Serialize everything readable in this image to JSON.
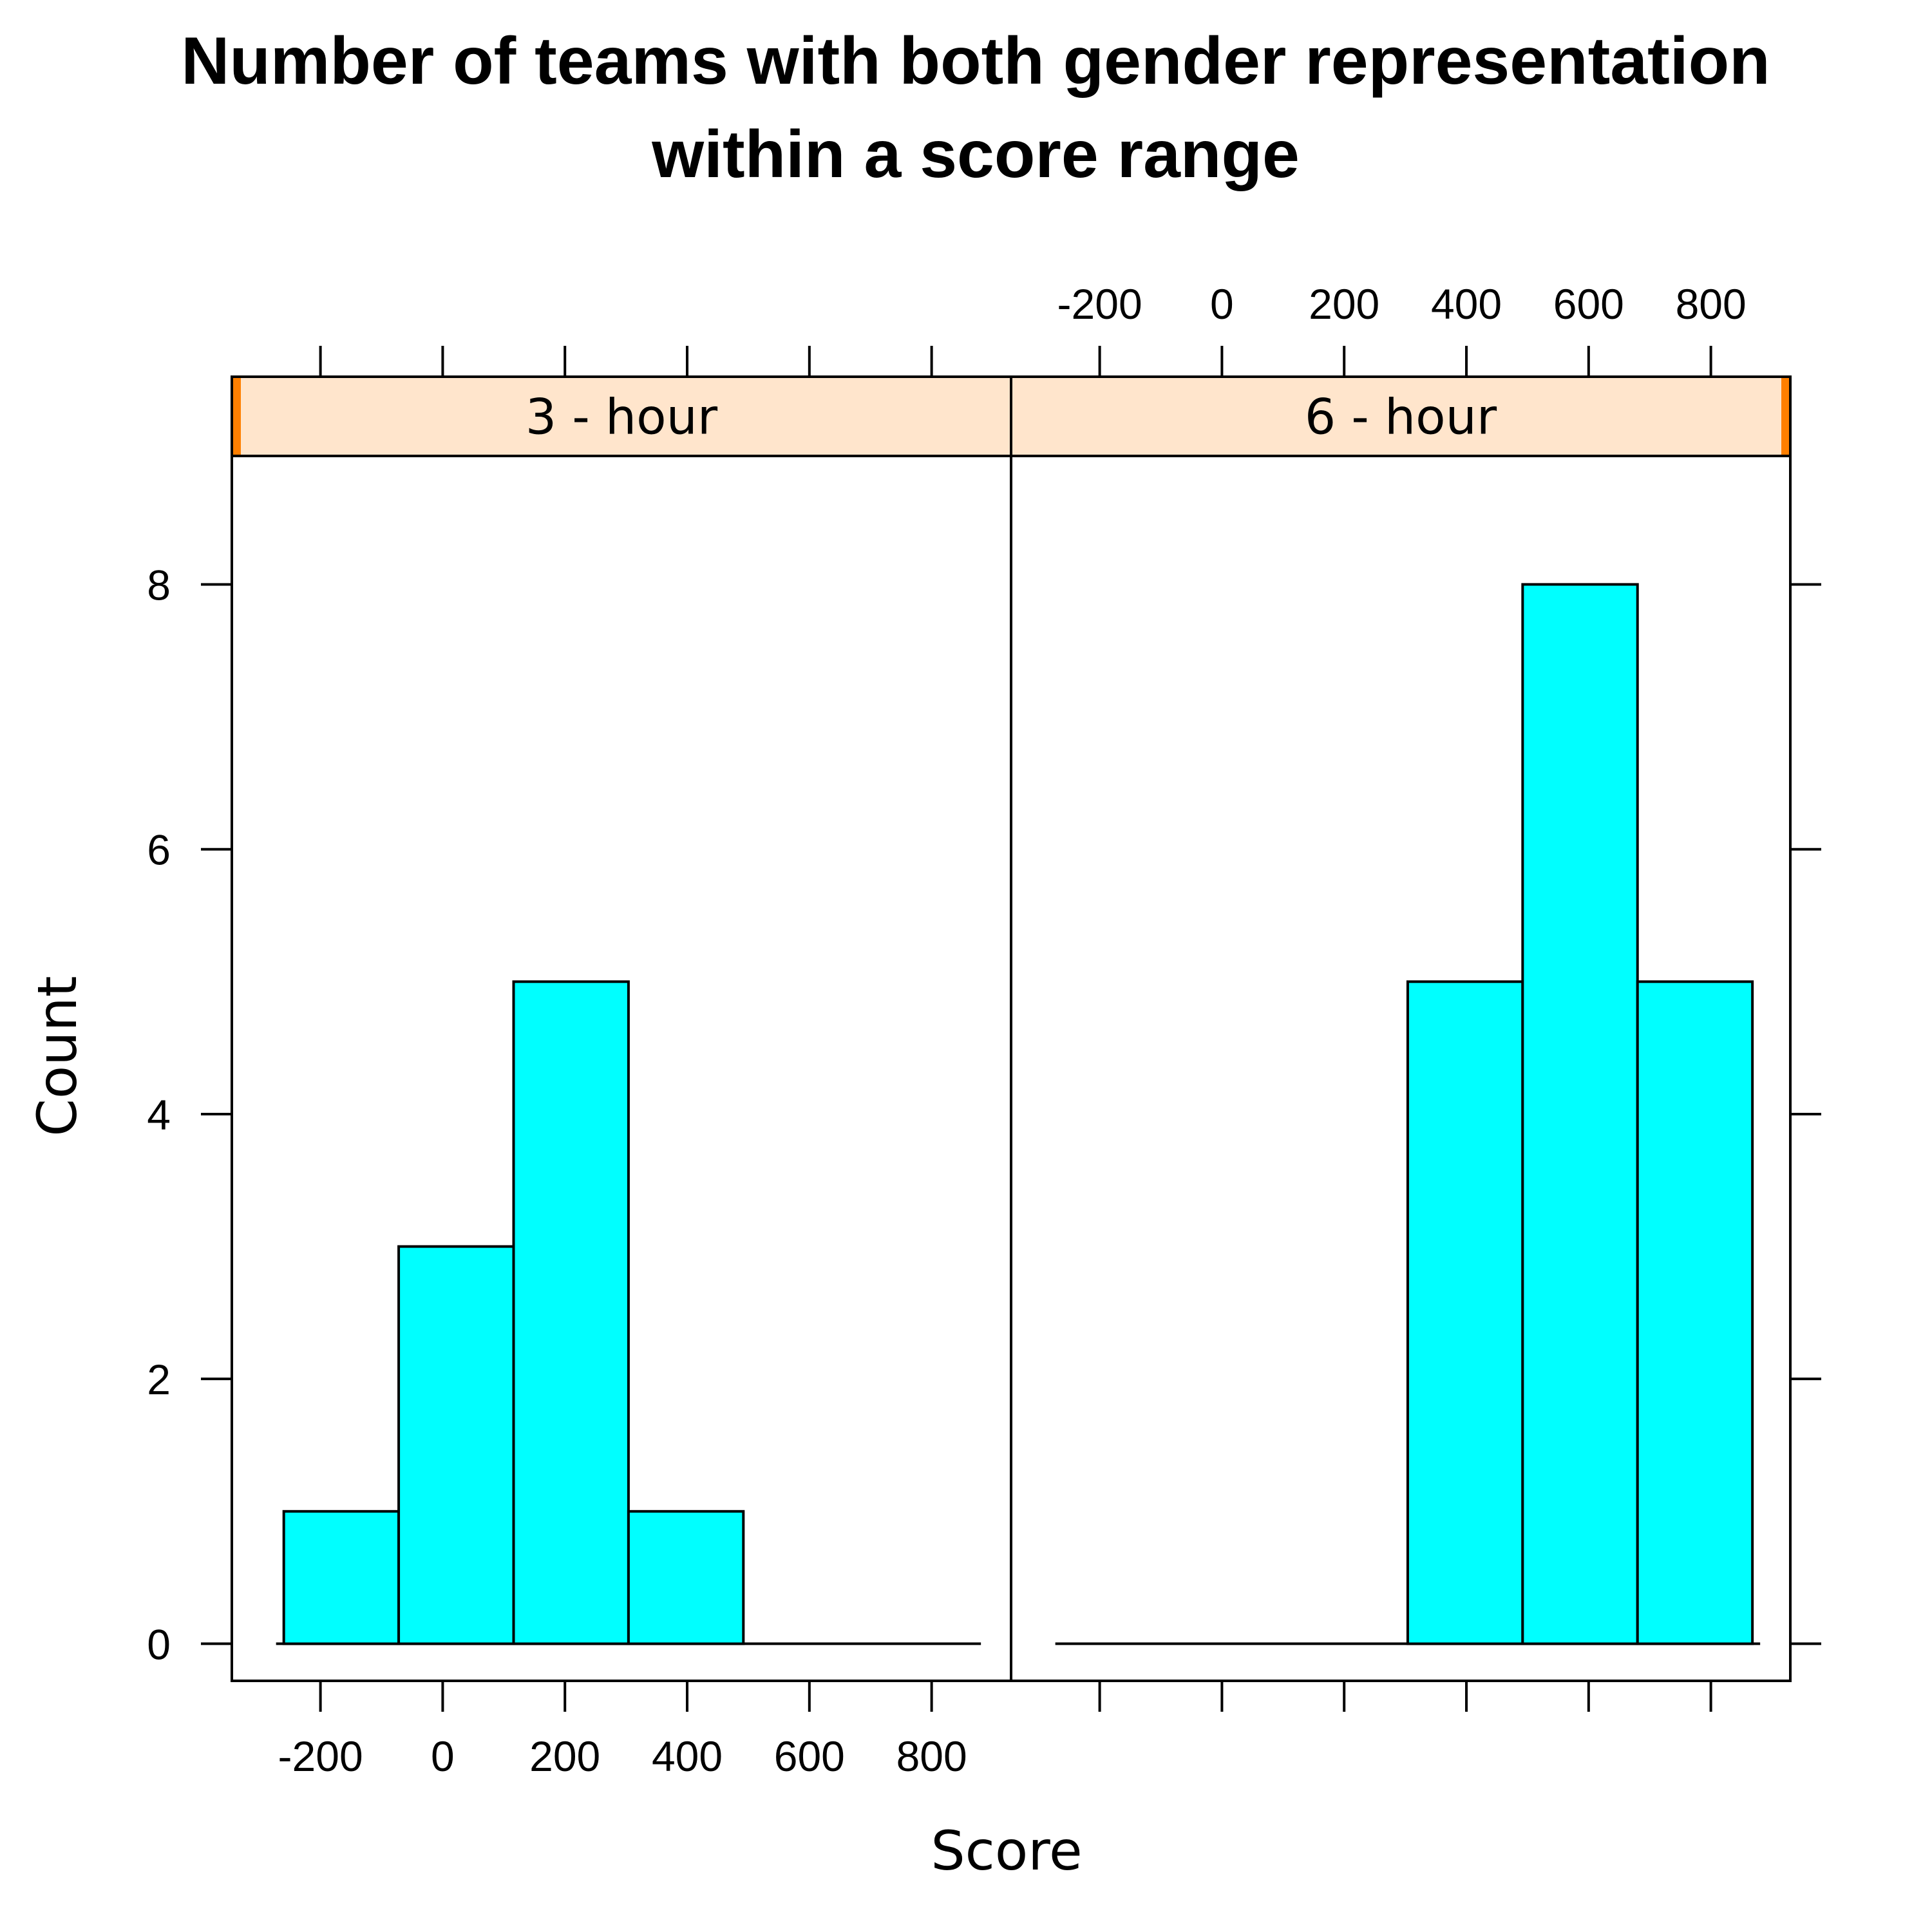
{
  "chart_data": {
    "type": "histogram",
    "title_lines": [
      "Number of teams with both gender representation",
      "within a score range"
    ],
    "xlabel": "Score",
    "ylabel": "Count",
    "x_ticks": [
      -200,
      0,
      200,
      400,
      600,
      800
    ],
    "y_ticks": [
      0,
      2,
      4,
      6,
      8
    ],
    "xlim": [
      -345,
      930
    ],
    "ylim": [
      -0.28,
      8.97
    ],
    "bin_edges": [
      -260,
      -72,
      116,
      304,
      492,
      680,
      868
    ],
    "colors": {
      "bar": "#00ffff",
      "strip": "#ffe5cc",
      "strip_indicator": "#ff7f00"
    },
    "panels": [
      {
        "name": "3 - hour",
        "counts": [
          1,
          3,
          5,
          1,
          0,
          0
        ]
      },
      {
        "name": "6 - hour",
        "counts": [
          0,
          0,
          0,
          5,
          8,
          5
        ]
      }
    ]
  }
}
